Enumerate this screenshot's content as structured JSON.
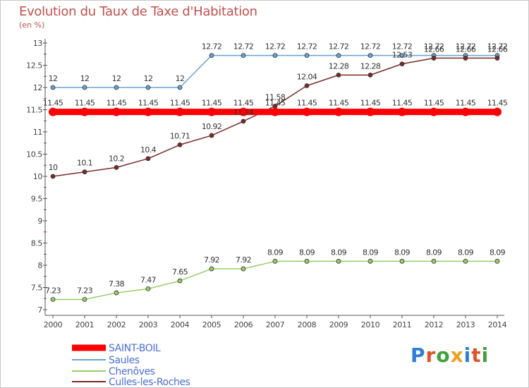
{
  "header": {
    "title": "Evolution du Taux de Taxe d'Habitation",
    "unit": "(en %)"
  },
  "logo": {
    "letters": [
      "P",
      "r",
      "o",
      "x",
      "i",
      "t",
      "i"
    ],
    "colors": [
      "#2f7fd6",
      "#e0532b",
      "#3fa23b",
      "#f0a020",
      "#2f7fd6",
      "#e0532b",
      "#3fa23b"
    ]
  },
  "chart_data": {
    "type": "line",
    "x": [
      "2000",
      "2001",
      "2002",
      "2003",
      "2004",
      "2005",
      "2006",
      "2007",
      "2008",
      "2009",
      "2010",
      "2011",
      "2012",
      "2013",
      "2014"
    ],
    "ylim": [
      7,
      13
    ],
    "y_ticks": [
      "7",
      "7.5",
      "8",
      "8.5",
      "9",
      "9.5",
      "10",
      "10.5",
      "11",
      "11.5",
      "12",
      "12.5",
      "13"
    ],
    "grid": false,
    "legend_position": "bottom-left",
    "series": [
      {
        "name": "SAINT-BOIL",
        "color": "#ff0000",
        "labels": [
          "11.45",
          "11.45",
          "11.45",
          "11.45",
          "11.45",
          "11.45",
          "11.45",
          "11.45",
          "11.45",
          "11.45",
          "11.45",
          "11.45",
          "11.45",
          "11.45",
          "11.45"
        ],
        "values": [
          11.45,
          11.45,
          11.45,
          11.45,
          11.45,
          11.45,
          11.45,
          11.45,
          11.45,
          11.45,
          11.45,
          11.45,
          11.45,
          11.45,
          11.45
        ]
      },
      {
        "name": "Saules",
        "color": "#6aa0d0",
        "labels": [
          "12",
          "12",
          "12",
          "12",
          "12",
          "12.72",
          "12.72",
          "12.72",
          "12.72",
          "12.72",
          "12.72",
          "12.72",
          "12.72",
          "12.72",
          "12.72"
        ],
        "values": [
          12,
          12,
          12,
          12,
          12,
          12.72,
          12.72,
          12.72,
          12.72,
          12.72,
          12.72,
          12.72,
          12.72,
          12.72,
          12.72
        ]
      },
      {
        "name": "Chenôves",
        "color": "#99cc66",
        "labels": [
          "7.23",
          "7.23",
          "7.38",
          "7.47",
          "7.65",
          "7.92",
          "7.92",
          "8.09",
          "8.09",
          "8.09",
          "8.09",
          "8.09",
          "8.09",
          "8.09",
          "8.09"
        ],
        "values": [
          7.23,
          7.23,
          7.38,
          7.47,
          7.65,
          7.92,
          7.92,
          8.09,
          8.09,
          8.09,
          8.09,
          8.09,
          8.09,
          8.09,
          8.09
        ]
      },
      {
        "name": "Culles-les-Roches",
        "color": "#7a2a2a",
        "labels": [
          "10",
          "10.1",
          "10.2",
          "10.4",
          "10.71",
          "10.92",
          "11.24",
          "11.58",
          "12.04",
          "12.28",
          "12.28",
          "12.53",
          "12.66",
          "12.66",
          "12.66"
        ],
        "values": [
          10,
          10.1,
          10.2,
          10.4,
          10.71,
          10.92,
          11.24,
          11.58,
          12.04,
          12.28,
          12.28,
          12.53,
          12.66,
          12.66,
          12.66
        ]
      }
    ]
  }
}
